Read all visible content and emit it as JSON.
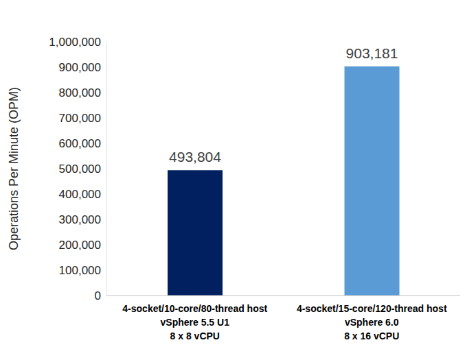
{
  "chart_data": {
    "type": "bar",
    "y_label": "Operations Per Minute (OPM)",
    "categories": [
      "4-socket/10-core/80-thread host\nvSphere 5.5 U1\n8 x 8 vCPU",
      "4-socket/15-core/120-thread host\nvSphere 6.0\n8 x 16 vCPU"
    ],
    "values": [
      493804,
      903181
    ],
    "value_labels": [
      "493,804",
      "903,181"
    ],
    "colors": [
      "#002060",
      "#5b9bd5"
    ],
    "ylim": [
      0,
      1000000
    ],
    "yticks": [
      0,
      {
        "value": 100000,
        "label": "100,000"
      },
      {
        "value": 200000,
        "label": "200,000"
      },
      {
        "value": 300000,
        "label": "300,000"
      },
      {
        "value": 400000,
        "label": "400,000"
      },
      {
        "value": 500000,
        "label": "500,000"
      },
      {
        "value": 600000,
        "label": "600,000"
      },
      {
        "value": 700000,
        "label": "700,000"
      },
      {
        "value": 800000,
        "label": "800,000"
      },
      {
        "value": 900000,
        "label": "900,000"
      },
      {
        "value": 1000000,
        "label": "1,000,000"
      }
    ],
    "grid": false,
    "data_labels": true
  }
}
